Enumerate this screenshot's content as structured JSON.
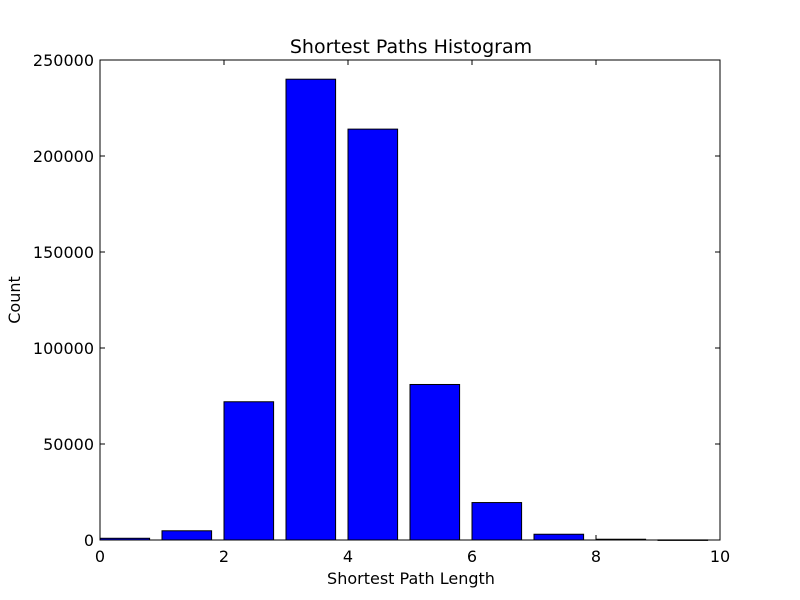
{
  "chart_data": {
    "type": "bar",
    "title": "Shortest Paths Histogram",
    "xlabel": "Shortest Path Length",
    "ylabel": "Count",
    "xlim": [
      0,
      10
    ],
    "ylim": [
      0,
      250000
    ],
    "x_ticks": [
      0,
      2,
      4,
      6,
      8,
      10
    ],
    "y_ticks": [
      0,
      50000,
      100000,
      150000,
      200000,
      250000
    ],
    "bar_color": "#0000ff",
    "edge_color": "#000000",
    "bar_width": 0.8,
    "categories": [
      0,
      1,
      2,
      3,
      4,
      5,
      6,
      7,
      8,
      9
    ],
    "values": [
      900,
      4800,
      72000,
      240000,
      214000,
      81000,
      19500,
      3000,
      400,
      50
    ],
    "grid": false
  }
}
